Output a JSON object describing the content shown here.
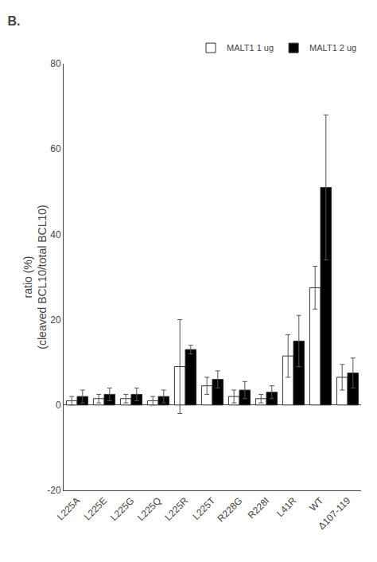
{
  "chart_data": {
    "type": "bar",
    "title": "B.",
    "ylabel": "ratio (%)\n(cleaved BCL10/total BCL10)",
    "categories": [
      "L225A",
      "L225E",
      "L225G",
      "L225Q",
      "L225R",
      "L225T",
      "R228G",
      "R228I",
      "L41R",
      "WT",
      "Δ107-119"
    ],
    "series": [
      {
        "name": "MALT1 1 ug",
        "color": "#ffffff",
        "values": [
          1.0,
          1.5,
          1.5,
          1.0,
          9.0,
          4.5,
          2.0,
          1.5,
          11.5,
          27.5,
          6.5
        ],
        "error": [
          1.0,
          1.0,
          1.0,
          1.0,
          11.0,
          2.0,
          1.5,
          1.0,
          5.0,
          5.0,
          3.0
        ]
      },
      {
        "name": "MALT1 2 ug",
        "color": "#000000",
        "values": [
          2.0,
          2.5,
          2.5,
          2.0,
          13.0,
          6.0,
          3.5,
          3.0,
          15.0,
          51.0,
          7.5
        ],
        "error": [
          1.5,
          1.5,
          1.5,
          1.5,
          1.0,
          2.0,
          2.0,
          1.5,
          6.0,
          17.0,
          3.5
        ]
      }
    ],
    "ylim": [
      -20,
      80
    ],
    "yticks": [
      -20,
      0,
      20,
      40,
      60,
      80
    ],
    "grid": false,
    "legend": "upper right"
  }
}
